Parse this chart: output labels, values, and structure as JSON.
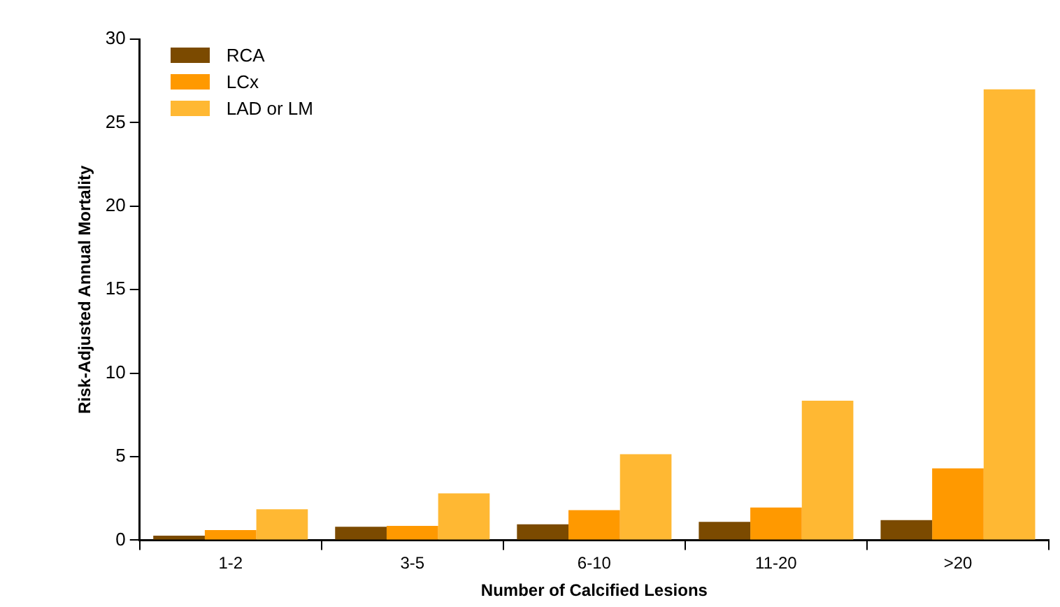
{
  "chart_data": {
    "type": "bar",
    "xlabel": "Number of Calcified Lesions",
    "ylabel": "Risk-Adjusted Annual Mortality",
    "categories": [
      "1-2",
      "3-5",
      "6-10",
      "11-20",
      ">20"
    ],
    "series": [
      {
        "name": "RCA",
        "color": "#7b4a00",
        "values": [
          0.27,
          0.8,
          0.95,
          1.1,
          1.2
        ]
      },
      {
        "name": "LCx",
        "color": "#ff9900",
        "values": [
          0.6,
          0.85,
          1.8,
          1.95,
          4.3
        ]
      },
      {
        "name": "LAD or LM",
        "color": "#ffb833",
        "values": [
          1.85,
          2.8,
          5.15,
          8.35,
          27
        ]
      }
    ],
    "ylim": [
      0,
      30
    ],
    "yticks": [
      0,
      5,
      10,
      15,
      20,
      25,
      30
    ],
    "grid": false,
    "legend": "top left"
  }
}
